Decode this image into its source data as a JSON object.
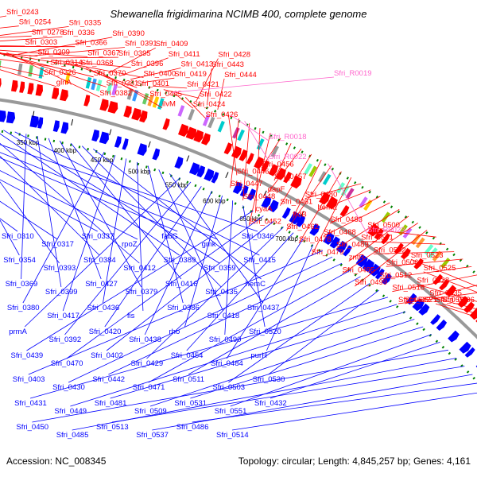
{
  "title": "Shewanella frigidimarina NCIMB 400, complete genome",
  "footer": {
    "accession": "Accession: NC_008345",
    "topology": "Topology: circular; Length: 4,845,257 bp; Genes: 4,161"
  },
  "colors": {
    "forward": "#ff0000",
    "reverse": "#0000ff",
    "rna": "#ff66cc",
    "backbone": "#999999",
    "cog_dots": "#008000"
  },
  "ticks": [
    "350 kbp",
    "400 kbp",
    "450 kbp",
    "500 kbp",
    "550 kbp",
    "600 kbp",
    "650 kbp",
    "700 kbp"
  ],
  "forward_labels": [
    "Sfri_0243",
    "Sfri_0254",
    "Sfri_0278",
    "Sfri_0303",
    "Sfri_0309",
    "Sfri_0314",
    "Sfri_0326",
    "glnA",
    "Sfri_0335",
    "Sfri_0336",
    "Sfri_0366",
    "Sfri_0367",
    "Sfri_0368",
    "Sfri_0370",
    "Sfri_0381",
    "Sfri_0382",
    "Sfri_0390",
    "Sfri_0391",
    "Sfri_0395",
    "Sfri_0396",
    "Sfri_0400",
    "Sfri_0401",
    "Sfri_0405",
    "ilvM",
    "Sfri_0409",
    "Sfri_0411",
    "Sfri_0413",
    "Sfri_0419",
    "Sfri_0421",
    "Sfri_0422",
    "Sfri_0424",
    "Sfri_0426",
    "Sfri_0428",
    "Sfri_0443",
    "Sfri_0444",
    "Sfri_0446",
    "Sfri_0447",
    "Sfri_0448",
    "cyaA",
    "Sfri_0452",
    "Sfri_0456",
    "Sfri_0457",
    "dapF",
    "Sfri_0461",
    "frdB",
    "Sfri_0462",
    "Sfri_0478",
    "Sfri_0479",
    "Sfri_0480",
    "hemE",
    "Sfri_0483",
    "Sfri_0488",
    "Sfri_0489",
    "zntR",
    "Sfri_0495",
    "Sfri_0499",
    "Sfri_0500",
    "Sfri_0501",
    "Sfri_0502",
    "Sfri_0506",
    "Sfri_0512",
    "Sfri_0518",
    "Sfri_0521",
    "Sfri_0522",
    "Sfri_0523",
    "Sfri_0525",
    "Sfri_0528",
    "Sfri_0535",
    "Sfri_0536",
    "Sfri_0550"
  ],
  "rna_labels": [
    "Sfri_R0019",
    "Sfri_R0018",
    "Sfri_R0022",
    "Sfri_R0023"
  ],
  "reverse_labels": [
    "Sfri_0310",
    "Sfri_0317",
    "Sfri_0337",
    "rpoZ",
    "fabG",
    "gmk",
    "Sfri_0346",
    "Sfri_0354",
    "Sfri_0393",
    "Sfri_0384",
    "Sfri_0412",
    "Sfri_0389",
    "Sfri_0359",
    "Sfri_0415",
    "Sfri_0369",
    "Sfri_0399",
    "Sfri_0427",
    "Sfri_0379",
    "Sfri_0416",
    "Sfri_0435",
    "hemC",
    "Sfri_0380",
    "Sfri_0417",
    "Sfri_0436",
    "fis",
    "Sfri_0386",
    "Sfri_0418",
    "Sfri_0437",
    "prmA",
    "Sfri_0392",
    "Sfri_0420",
    "Sfri_0438",
    "rho",
    "Sfri_0490",
    "Sfri_0520",
    "Sfri_0439",
    "Sfri_0470",
    "Sfri_0402",
    "Sfri_0429",
    "Sfri_0454",
    "Sfri_0484",
    "purH",
    "Sfri_0403",
    "Sfri_0430",
    "Sfri_0442",
    "Sfri_0471",
    "Sfri_0511",
    "Sfri_0503",
    "Sfri_0530",
    "Sfri_0431",
    "Sfri_0449",
    "Sfri_0481",
    "Sfri_0509",
    "Sfri_0531",
    "Sfri_0551",
    "Sfri_0432",
    "Sfri_0450",
    "Sfri_0485",
    "Sfri_0513",
    "Sfri_0537",
    "Sfri_0486",
    "Sfri_0514"
  ]
}
